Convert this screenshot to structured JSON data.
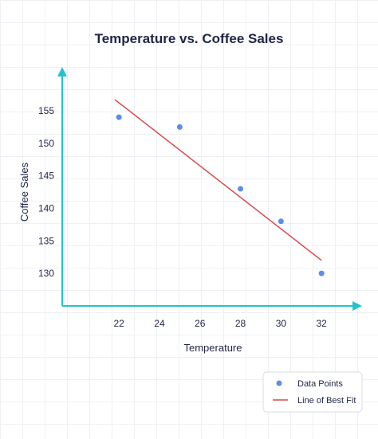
{
  "chart_data": {
    "type": "scatter",
    "title": "Temperature vs. Coffee Sales",
    "xlabel": "Temperature",
    "ylabel": "Coffee Sales",
    "x_ticks": [
      22,
      24,
      26,
      28,
      30,
      32
    ],
    "y_ticks": [
      130,
      135,
      140,
      145,
      150,
      155
    ],
    "xlim": [
      19.2,
      34.0
    ],
    "ylim": [
      125.0,
      160.5
    ],
    "grid": true,
    "legend_position": "bottom-right",
    "series": [
      {
        "name": "Data Points",
        "kind": "scatter",
        "color": "#5b8def",
        "x": [
          22,
          25,
          28,
          30,
          32
        ],
        "y": [
          154,
          152.5,
          143,
          138,
          130
        ]
      },
      {
        "name": "Line of Best Fit",
        "kind": "line",
        "color": "#d94a4a",
        "x": [
          21.8,
          32.0
        ],
        "y": [
          156.7,
          132.0
        ]
      }
    ]
  }
}
